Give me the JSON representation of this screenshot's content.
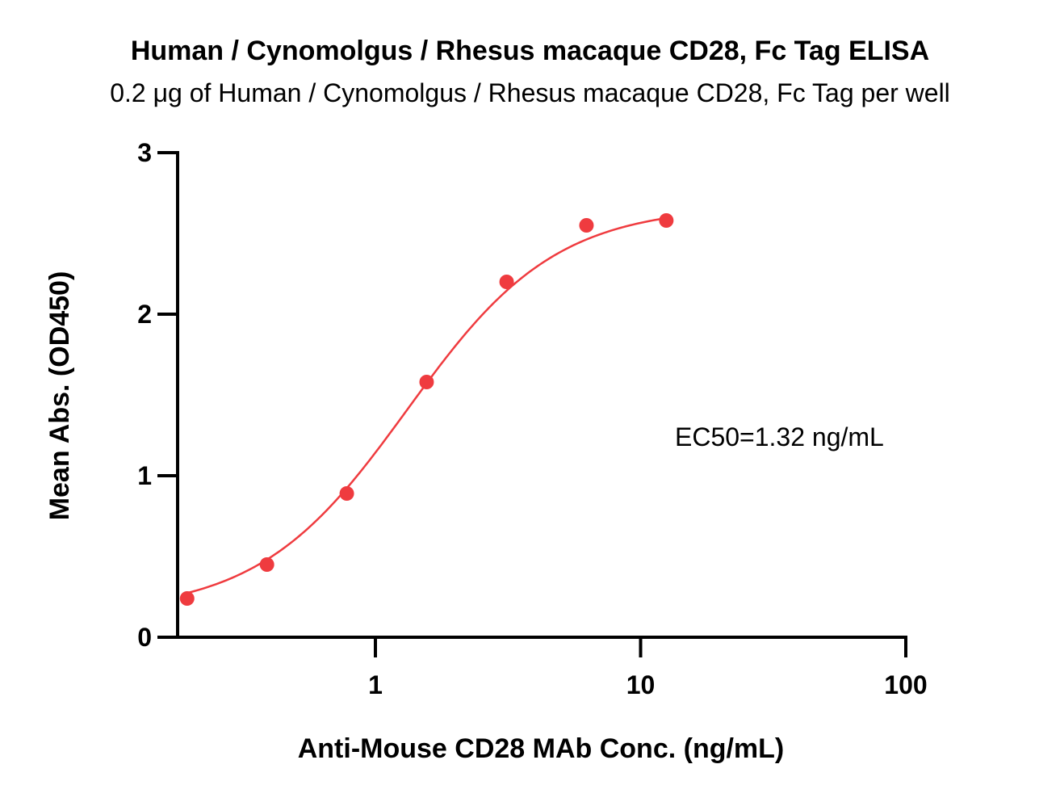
{
  "chart_data": {
    "type": "scatter",
    "title": "Human / Cynomolgus / Rhesus macaque CD28, Fc Tag ELISA",
    "subtitle": "0.2 μg of Human / Cynomolgus / Rhesus macaque CD28, Fc Tag per well",
    "xlabel": "Anti-Mouse CD28 MAb Conc. (ng/mL)",
    "ylabel": "Mean Abs. (OD450)",
    "x_scale": "log",
    "xlim": [
      0.16,
      100
    ],
    "ylim": [
      0,
      3
    ],
    "x_ticks": [
      {
        "value": 1,
        "label": "1"
      },
      {
        "value": 10,
        "label": "10"
      },
      {
        "value": 100,
        "label": "100"
      }
    ],
    "y_ticks": [
      {
        "value": 0,
        "label": "0"
      },
      {
        "value": 1,
        "label": "1"
      },
      {
        "value": 2,
        "label": "2"
      },
      {
        "value": 3,
        "label": "3"
      }
    ],
    "grid": false,
    "point_color": "#ef3b3f",
    "curve_color": "#ef3b3f",
    "series": [
      {
        "x": [
          0.195,
          0.39,
          0.78,
          1.56,
          3.125,
          6.25,
          12.5
        ],
        "y": [
          0.24,
          0.45,
          0.89,
          1.58,
          2.2,
          2.55,
          2.58
        ]
      }
    ],
    "fit": {
      "model": "4PL",
      "bottom": 0.15,
      "top": 2.67,
      "ec50": 1.32,
      "hill": 1.55
    },
    "annotation": "EC50=1.32 ng/mL"
  }
}
